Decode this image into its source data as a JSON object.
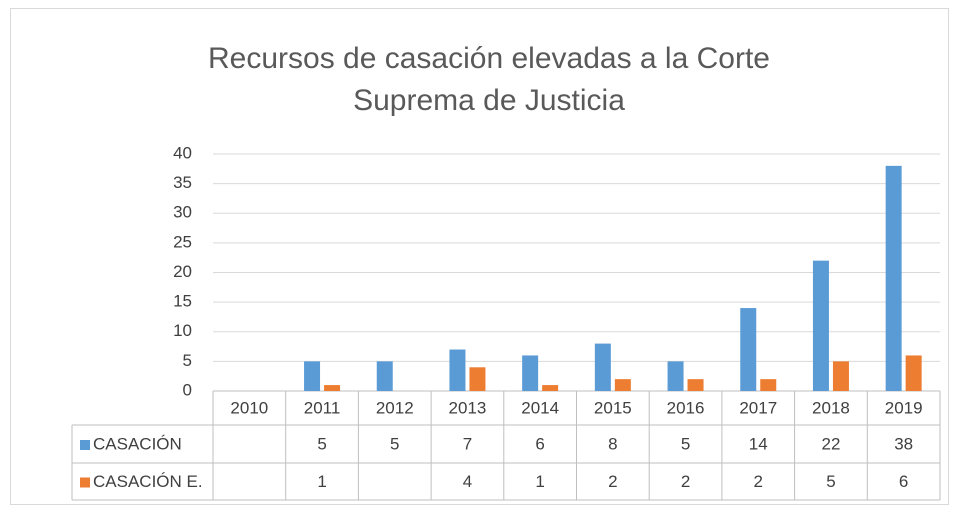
{
  "chart_data": {
    "type": "bar",
    "title": [
      "Recursos de casación elevadas a la Corte",
      "Suprema de Justicia"
    ],
    "categories": [
      "2010",
      "2011",
      "2012",
      "2013",
      "2014",
      "2015",
      "2016",
      "2017",
      "2018",
      "2019"
    ],
    "series": [
      {
        "name": "CASACIÓN",
        "color": "#5b9bd5",
        "values": [
          null,
          5,
          5,
          7,
          6,
          8,
          5,
          14,
          22,
          38
        ]
      },
      {
        "name": "CASACIÓN E.",
        "color": "#ed7d31",
        "values": [
          null,
          1,
          null,
          4,
          1,
          2,
          2,
          2,
          5,
          6
        ]
      }
    ],
    "ylim": [
      0,
      40
    ],
    "yticks": [
      0,
      5,
      10,
      15,
      20,
      25,
      30,
      35,
      40
    ],
    "grid": true
  }
}
